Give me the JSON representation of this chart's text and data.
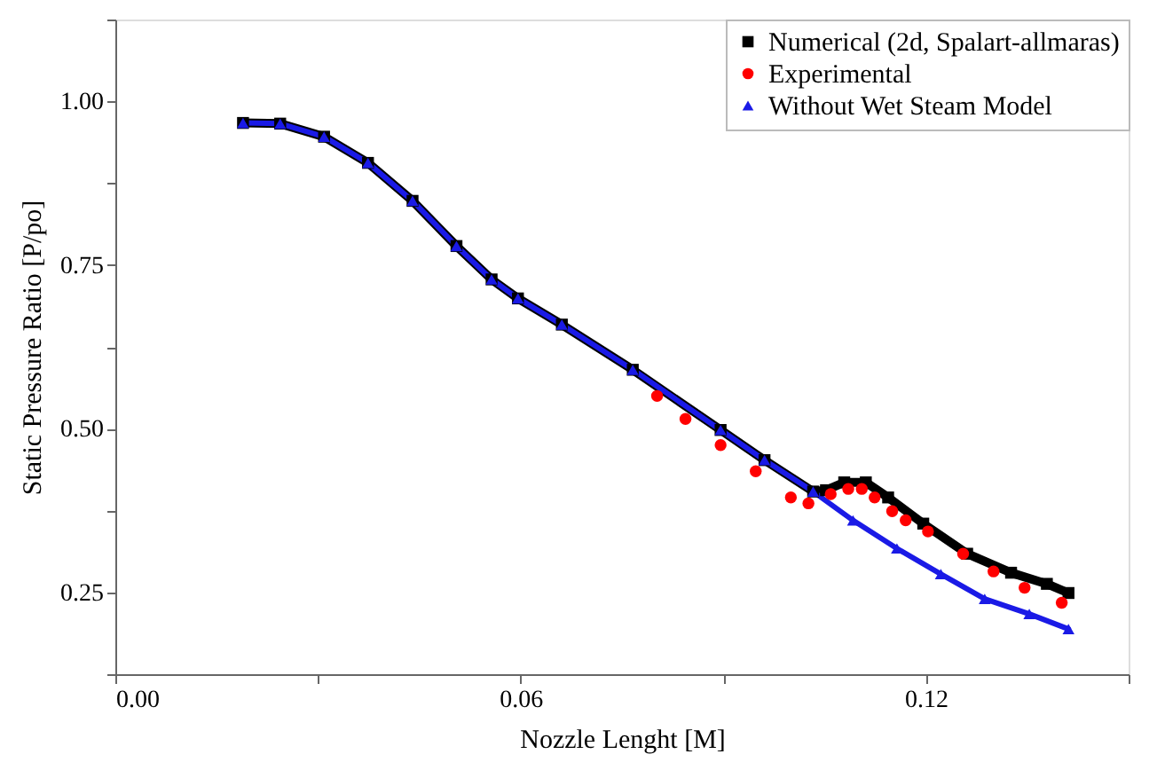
{
  "chart_data": {
    "type": "line",
    "xlabel": "Nozzle Lenght [M]",
    "ylabel": "Static Pressure Ratio [P/po]",
    "xlim": [
      0,
      0.15
    ],
    "ylim": [
      0.125,
      1.125
    ],
    "xticks": [
      {
        "value": 0,
        "label": "0.00"
      },
      {
        "value": 0.03,
        "label": null
      },
      {
        "value": 0.06,
        "label": "0.06"
      },
      {
        "value": 0.09,
        "label": null
      },
      {
        "value": 0.12,
        "label": "0.12"
      },
      {
        "value": 0.15,
        "label": null
      }
    ],
    "yticks": [
      {
        "value": 0.125,
        "label": null
      },
      {
        "value": 0.25,
        "label": "0.25"
      },
      {
        "value": 0.375,
        "label": null
      },
      {
        "value": 0.5,
        "label": "0.50"
      },
      {
        "value": 0.625,
        "label": null
      },
      {
        "value": 0.75,
        "label": "0.75"
      },
      {
        "value": 0.875,
        "label": null
      },
      {
        "value": 1.0,
        "label": "1.00"
      },
      {
        "value": 1.125,
        "label": null
      }
    ],
    "legend": "top right",
    "grid": false,
    "series": [
      {
        "name": "Numerical (2d, Spalart-allmaras)",
        "marker": "square",
        "color": "#000000",
        "x": [
          0.0189,
          0.0244,
          0.0309,
          0.0374,
          0.044,
          0.0505,
          0.0557,
          0.0596,
          0.0661,
          0.0766,
          0.0896,
          0.0961,
          0.1033,
          0.1052,
          0.1079,
          0.1111,
          0.1144,
          0.1196,
          0.1261,
          0.1326,
          0.1379,
          0.1411
        ],
        "values": [
          0.967,
          0.966,
          0.946,
          0.906,
          0.848,
          0.779,
          0.728,
          0.699,
          0.659,
          0.59,
          0.498,
          0.452,
          0.404,
          0.406,
          0.418,
          0.418,
          0.395,
          0.355,
          0.309,
          0.28,
          0.263,
          0.249
        ]
      },
      {
        "name": "Experimental",
        "type": "scatter",
        "marker": "circle",
        "color": "#ff0000",
        "x": [
          0.0802,
          0.0844,
          0.0896,
          0.0948,
          0.1,
          0.1026,
          0.1059,
          0.1085,
          0.1105,
          0.1124,
          0.115,
          0.117,
          0.1203,
          0.1255,
          0.13,
          0.1346,
          0.1401
        ],
        "values": [
          0.55,
          0.515,
          0.475,
          0.435,
          0.395,
          0.386,
          0.4,
          0.408,
          0.408,
          0.395,
          0.374,
          0.36,
          0.343,
          0.309,
          0.282,
          0.257,
          0.234
        ]
      },
      {
        "name": "Without Wet Steam Model",
        "marker": "triangle",
        "color": "#1a1ae6",
        "x": [
          0.0189,
          0.0244,
          0.0309,
          0.0374,
          0.044,
          0.0505,
          0.0557,
          0.0596,
          0.0661,
          0.0766,
          0.0896,
          0.0961,
          0.1033,
          0.1092,
          0.1157,
          0.1222,
          0.1287,
          0.1353,
          0.1411
        ],
        "values": [
          0.967,
          0.966,
          0.946,
          0.906,
          0.848,
          0.779,
          0.728,
          0.699,
          0.659,
          0.59,
          0.498,
          0.452,
          0.404,
          0.36,
          0.317,
          0.278,
          0.24,
          0.217,
          0.194
        ]
      }
    ]
  }
}
